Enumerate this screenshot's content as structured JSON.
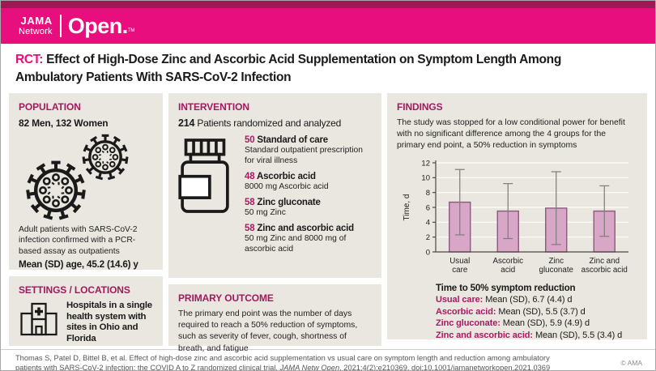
{
  "header": {
    "logo_line1": "JAMA",
    "logo_line2": "Network",
    "brand": "Open.",
    "brand_tm": "TM",
    "colors": {
      "strip": "#9b1a55",
      "bar": "#e90e7d"
    }
  },
  "title": {
    "prefix": "RCT:",
    "text": "Effect of High-Dose Zinc and Ascorbic Acid Supplementation on Symptom Length Among Ambulatory Patients With SARS-CoV-2 Infection"
  },
  "population": {
    "heading": "POPULATION",
    "subtitle": "82 Men, 132 Women",
    "icons": [
      "virus-icon",
      "virus-icon"
    ],
    "description": "Adult patients with SARS-CoV-2 infection confirmed with a PCR-based assay as outpatients",
    "mean_age": "Mean (SD) age, 45.2 (14.6) y"
  },
  "settings": {
    "heading": "SETTINGS / LOCATIONS",
    "icon": "hospital-icon",
    "text": "Hospitals in a single health system with sites in Ohio and Florida"
  },
  "intervention": {
    "heading": "INTERVENTION",
    "count": "214",
    "count_label": "Patients randomized and analyzed",
    "icon": "pill-bottle-icon",
    "groups": [
      {
        "n": "50",
        "name": "Standard of care",
        "desc": "Standard outpatient prescription for viral illness"
      },
      {
        "n": "48",
        "name": "Ascorbic acid",
        "desc": "8000 mg Ascorbic acid"
      },
      {
        "n": "58",
        "name": "Zinc gluconate",
        "desc": "50 mg Zinc"
      },
      {
        "n": "58",
        "name": "Zinc and ascorbic acid",
        "desc": "50 mg Zinc and 8000 mg of ascorbic acid"
      }
    ]
  },
  "primary_outcome": {
    "heading": "PRIMARY OUTCOME",
    "text": "The primary end point was the number of days required to reach a 50% reduction of symptoms, such as severity of fever, cough, shortness of  breath, and fatigue"
  },
  "findings": {
    "heading": "FINDINGS",
    "summary": "The study was stopped for a low conditional power for benefit with no significant difference among the 4 groups for the primary end point, a 50% reduction in symptoms",
    "results_title": "Time to 50% symptom reduction",
    "results": [
      {
        "label": "Usual care:",
        "value": "Mean (SD), 6.7 (4.4) d"
      },
      {
        "label": "Ascorbic acid:",
        "value": "Mean (SD), 5.5 (3.7) d"
      },
      {
        "label": "Zinc gluconate:",
        "value": "Mean (SD), 5.9 (4.9) d"
      },
      {
        "label": "Zinc and ascorbic acid:",
        "value": "Mean (SD), 5.5 (3.4) d"
      }
    ]
  },
  "chart_data": {
    "type": "bar",
    "title": "",
    "categories": [
      "Usual care",
      "Ascorbic acid",
      "Zinc gluconate",
      "Zinc and ascorbic acid"
    ],
    "categories_lines": [
      [
        "Usual",
        "care"
      ],
      [
        "Ascorbic",
        "acid"
      ],
      [
        "Zinc",
        "gluconate"
      ],
      [
        "Zinc and",
        "ascorbic acid"
      ]
    ],
    "values": [
      6.7,
      5.5,
      5.9,
      5.5
    ],
    "error_sd": [
      4.4,
      3.7,
      4.9,
      3.4
    ],
    "xlabel": "",
    "ylabel": "Time, d",
    "ylim": [
      0,
      12
    ],
    "yticks": [
      0,
      2,
      4,
      6,
      8,
      10,
      12
    ],
    "grid": true,
    "legend": false,
    "bar_fill": "#d8a7c7",
    "bar_stroke": "#8a5a7c",
    "error_color": "#7d7d78",
    "grid_color": "#fbfaf6",
    "axis_color": "#4a4a47"
  },
  "footer": {
    "citation_part1": "Thomas S, Patel D, Bittel B, et al. Effect of high-dose zinc and ascorbic acid supplementation vs usual care on symptom length and reduction among ambulatory patients with SARS-CoV-2 infection: the COVID A to Z randomized clinical trial. ",
    "citation_italic": "JAMA Netw Open",
    "citation_part2": ". 2021;4(2):e210369. doi:10.1001/jamanetworkopen.2021.0369",
    "copyright": "© AMA"
  }
}
